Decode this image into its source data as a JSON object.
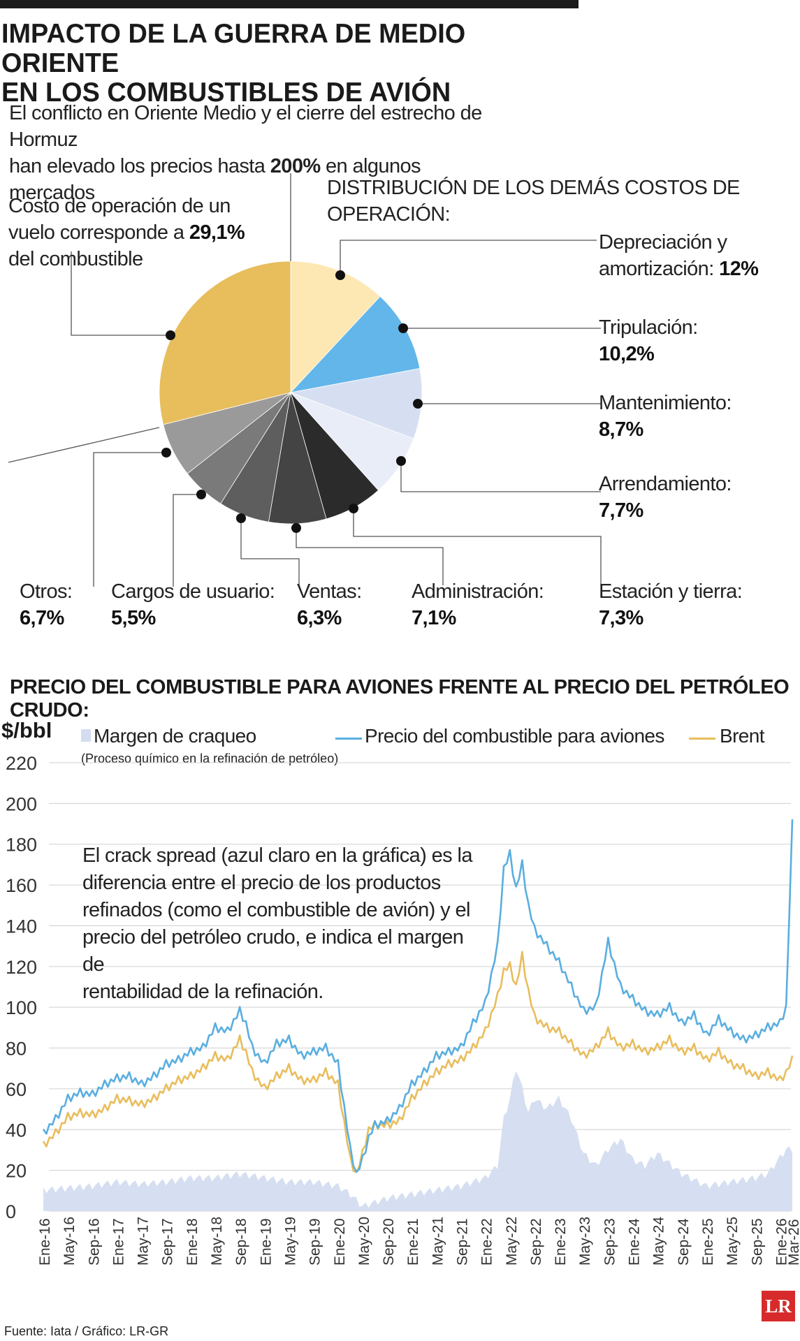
{
  "header": {
    "title_line1": "IMPACTO DE LA GUERRA DE MEDIO ORIENTE",
    "title_line2": "EN LOS COMBUSTIBLES DE AVIÓN",
    "subtitle_line1": "El conflicto en Oriente Medio y el cierre del estrecho de Hormuz",
    "subtitle_line2_pre": "han elevado los precios hasta ",
    "subtitle_line2_bold": "200%",
    "subtitle_line2_post": " en algunos mercados"
  },
  "pie_section": {
    "fuel_text_line1": "Costo de operación de un",
    "fuel_text_line2_pre": "vuelo corresponde a ",
    "fuel_text_line2_bold": "29,1%",
    "fuel_text_line3": "del combustible",
    "others_title": "DISTRIBUCIÓN DE LOS DEMÁS COSTOS DE OPERACIÓN:",
    "labels": {
      "depreciacion_l1": "Depreciación y",
      "depreciacion_l2": "amortización: ",
      "depreciacion_v": "12%",
      "tripulacion_l1": "Tripulación:",
      "tripulacion_v": "10,2%",
      "mantenimiento_l1": "Mantenimiento:",
      "mantenimiento_v": "8,7%",
      "arrendamiento_l1": "Arrendamiento:",
      "arrendamiento_v": "7,7%",
      "estacion_l1": "Estación y tierra:",
      "estacion_v": "7,3%",
      "administracion_l1": "Administración:",
      "administracion_v": "7,1%",
      "ventas_l1": "Ventas:",
      "ventas_v": "6,3%",
      "cargos_l1": "Cargos de usuario:",
      "cargos_v": "5,5%",
      "otros_l1": "Otros:",
      "otros_v": "6,7%"
    }
  },
  "line_section": {
    "title": "PRECIO DEL COMBUSTIBLE PARA AVIONES FRENTE AL PRECIO DEL PETRÓLEO CRUDO:",
    "unit": "$/bbl",
    "legend_crack": "Margen de craqueo",
    "legend_crack_sub": "(Proceso químico en la refinación de petróleo)",
    "legend_jet": "Precio del combustible para aviones",
    "legend_brent": "Brent",
    "annotation_l1": "El crack spread (azul claro en la gráfica) es la",
    "annotation_l2": "diferencia entre el precio de los productos",
    "annotation_l3": "refinados (como el combustible de avión) y el",
    "annotation_l4": "precio del petróleo crudo, e indica el margen de",
    "annotation_l5": "rentabilidad de la refinación."
  },
  "footer": {
    "source": "Fuente: Iata / Gráfico: LR-GR",
    "logo": "LR"
  },
  "chart_data": [
    {
      "type": "pie",
      "title": "Costo de operación de un vuelo",
      "slices": [
        {
          "name": "Depreciación y amortización",
          "value": 12.0,
          "color": "#fde8b4"
        },
        {
          "name": "Tripulación",
          "value": 10.2,
          "color": "#62b6ea"
        },
        {
          "name": "Mantenimiento",
          "value": 8.7,
          "color": "#d6dff2"
        },
        {
          "name": "Arrendamiento",
          "value": 7.7,
          "color": "#e9edf8"
        },
        {
          "name": "Estación y tierra",
          "value": 7.3,
          "color": "#2b2b2b"
        },
        {
          "name": "Administración",
          "value": 7.1,
          "color": "#444444"
        },
        {
          "name": "Ventas",
          "value": 6.3,
          "color": "#5e5e5e"
        },
        {
          "name": "Cargos de usuario",
          "value": 5.5,
          "color": "#7a7a7a"
        },
        {
          "name": "Otros",
          "value": 6.7,
          "color": "#9a9a9a"
        },
        {
          "name": "Combustible",
          "value": 29.1,
          "color": "#e8bd5c"
        }
      ]
    },
    {
      "type": "line",
      "title": "Precio del combustible para aviones frente al precio del petróleo crudo",
      "ylabel": "$/bbl",
      "ylim": [
        0,
        220
      ],
      "yticks": [
        0,
        20,
        40,
        60,
        80,
        100,
        120,
        140,
        160,
        180,
        200,
        220
      ],
      "xticks": [
        "Ene-16",
        "May-16",
        "Sep-16",
        "Ene-17",
        "May-17",
        "Sep-17",
        "Ene-18",
        "May-18",
        "Sep-18",
        "Ene-19",
        "May-19",
        "Sep-19",
        "Ene-20",
        "May-20",
        "Sep-20",
        "Ene-21",
        "May-21",
        "Sep-21",
        "Ene-22",
        "May-22",
        "Sep-22",
        "Ene-23",
        "May-23",
        "Sep-23",
        "Ene-24",
        "May-24",
        "Sep-24",
        "Ene-25",
        "May-25",
        "Sep-25",
        "Ene-26",
        "Mar-26"
      ],
      "x_months": [
        0,
        4,
        8,
        12,
        16,
        20,
        24,
        28,
        32,
        36,
        40,
        44,
        48,
        52,
        56,
        60,
        64,
        68,
        72,
        76,
        80,
        84,
        88,
        92,
        96,
        100,
        104,
        108,
        112,
        116,
        120,
        122
      ],
      "series": [
        {
          "name": "Precio del combustible para aviones",
          "color": "#5aaee0",
          "months": [
            0,
            2,
            4,
            6,
            8,
            10,
            12,
            14,
            16,
            18,
            20,
            22,
            24,
            26,
            28,
            30,
            32,
            33,
            34,
            36,
            38,
            40,
            42,
            44,
            46,
            48,
            50,
            51,
            52,
            53,
            54,
            56,
            58,
            60,
            62,
            64,
            66,
            68,
            70,
            72,
            74,
            75,
            76,
            77,
            78,
            79,
            80,
            82,
            84,
            86,
            88,
            90,
            92,
            94,
            96,
            98,
            100,
            102,
            104,
            106,
            108,
            110,
            112,
            114,
            116,
            118,
            120,
            121,
            122
          ],
          "values": [
            38,
            45,
            55,
            58,
            57,
            62,
            65,
            66,
            62,
            66,
            72,
            74,
            78,
            80,
            90,
            88,
            98,
            92,
            80,
            72,
            82,
            84,
            76,
            78,
            80,
            72,
            30,
            18,
            25,
            36,
            42,
            44,
            50,
            62,
            68,
            76,
            78,
            80,
            92,
            102,
            130,
            168,
            175,
            158,
            170,
            150,
            138,
            130,
            122,
            110,
            98,
            100,
            132,
            110,
            104,
            98,
            96,
            100,
            92,
            96,
            86,
            94,
            88,
            84,
            86,
            90,
            92,
            100,
            190
          ]
        },
        {
          "name": "Brent",
          "color": "#e8bd5c",
          "months": [
            0,
            2,
            4,
            6,
            8,
            10,
            12,
            14,
            16,
            18,
            20,
            22,
            24,
            26,
            28,
            30,
            32,
            33,
            34,
            36,
            38,
            40,
            42,
            44,
            46,
            48,
            50,
            51,
            52,
            53,
            54,
            56,
            58,
            60,
            62,
            64,
            66,
            68,
            70,
            72,
            74,
            75,
            76,
            77,
            78,
            79,
            80,
            82,
            84,
            86,
            88,
            90,
            92,
            94,
            96,
            98,
            100,
            102,
            104,
            106,
            108,
            110,
            112,
            114,
            116,
            118,
            120,
            121,
            122
          ],
          "values": [
            32,
            38,
            46,
            48,
            47,
            50,
            55,
            54,
            52,
            55,
            60,
            64,
            66,
            70,
            76,
            74,
            84,
            78,
            68,
            60,
            66,
            70,
            64,
            64,
            68,
            62,
            25,
            18,
            28,
            40,
            42,
            42,
            44,
            55,
            62,
            68,
            72,
            74,
            80,
            88,
            105,
            118,
            120,
            110,
            125,
            108,
            95,
            90,
            88,
            82,
            76,
            80,
            88,
            80,
            82,
            78,
            80,
            84,
            78,
            80,
            74,
            78,
            72,
            70,
            66,
            68,
            64,
            68,
            74
          ]
        },
        {
          "name": "Margen de craqueo",
          "color": "#d4ddf0",
          "months": [
            0,
            4,
            8,
            12,
            16,
            20,
            24,
            28,
            32,
            36,
            40,
            44,
            48,
            50,
            52,
            54,
            56,
            60,
            64,
            68,
            72,
            74,
            75,
            76,
            77,
            78,
            79,
            80,
            82,
            84,
            86,
            88,
            90,
            92,
            94,
            96,
            98,
            100,
            104,
            108,
            112,
            116,
            118,
            120,
            121,
            122
          ],
          "values": [
            10,
            11,
            12,
            14,
            13,
            14,
            16,
            16,
            18,
            16,
            14,
            14,
            12,
            8,
            2,
            4,
            6,
            8,
            10,
            12,
            16,
            22,
            45,
            55,
            70,
            60,
            48,
            55,
            50,
            55,
            45,
            28,
            22,
            30,
            35,
            25,
            22,
            28,
            18,
            12,
            14,
            16,
            18,
            26,
            30,
            30
          ]
        }
      ]
    }
  ]
}
